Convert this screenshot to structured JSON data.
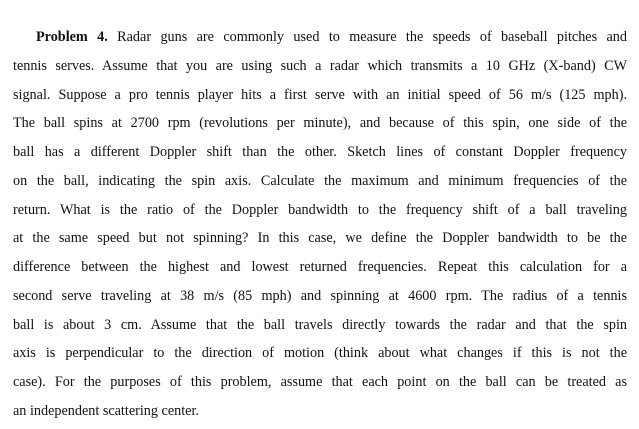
{
  "problem": {
    "heading": "Problem 4.",
    "lines": [
      " Radar guns are commonly used to measure the speeds of baseball pitches and",
      "tennis serves. Assume that you are using such a radar which transmits a 10 GHz (X-band) CW",
      "signal. Suppose a pro tennis player hits a first serve with an initial speed of 56 m/s (125 mph).",
      "The ball spins at 2700 rpm (revolutions per minute), and because of this spin, one side of the",
      "ball has a different Doppler shift than the other. Sketch lines of constant Doppler frequency",
      "on the ball, indicating the spin axis. Calculate the maximum and minimum frequencies of the",
      "return. What is the ratio of the Doppler bandwidth to the frequency shift of a ball traveling",
      "at the same speed but not spinning? In this case, we define the Doppler bandwidth to be the",
      "difference between the highest and lowest returned frequencies. Repeat this calculation for a",
      "second serve traveling at 38 m/s (85 mph) and spinning at 4600 rpm. The radius of a tennis",
      "ball is about 3 cm. Assume that the ball travels directly towards the radar and that the spin",
      "axis is perpendicular to the direction of motion (think about what changes if this is not the",
      "case). For the purposes of this problem, assume that each point on the ball can be treated as",
      "an independent scattering center."
    ]
  }
}
